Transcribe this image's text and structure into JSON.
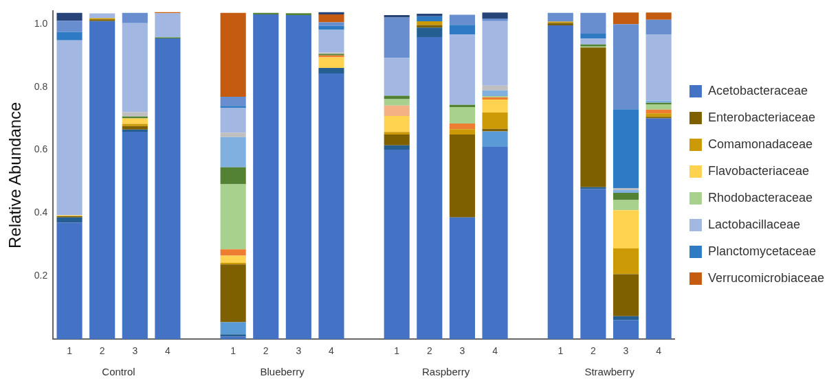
{
  "chart_data": {
    "type": "bar",
    "stacked": true,
    "ylabel": "Relative Abundance",
    "legend": "right",
    "grid": false,
    "categories": [
      "1",
      "2",
      "3",
      "4",
      null,
      "1",
      "2",
      "3",
      "4",
      null,
      "1",
      "2",
      "3",
      "4",
      null,
      "1",
      "2",
      "3",
      "4"
    ],
    "annotations": [
      "Control",
      "Blueberry",
      "Raspberry",
      "Strawberry"
    ],
    "ylim": [
      0,
      1.04
    ],
    "yticks": [
      0.2,
      0.4,
      0.6,
      0.8,
      {
        "value": 1,
        "label": "1.0"
      }
    ],
    "series": [
      {
        "name": "Acetobacteraceae",
        "color": "#4472c4",
        "values": [
          0.37,
          1.009,
          0.658,
          0.954,
          null,
          0.008,
          1.03,
          1.028,
          0.843,
          null,
          0.601,
          0.958,
          0.386,
          0.61,
          null,
          0.995,
          0.476,
          0.061,
          0.7
        ]
      },
      {
        "color": "#255e91",
        "values": [
          0.016,
          0,
          0.007,
          0,
          null,
          0.007,
          0,
          0,
          0.017,
          null,
          0.014,
          0.03,
          0,
          0,
          null,
          0,
          0.006,
          0.012,
          0
        ]
      },
      {
        "color": "#5b9bd5",
        "values": [
          0,
          0,
          0,
          0,
          null,
          0.039,
          0,
          0,
          0,
          null,
          0,
          0,
          0,
          0.049,
          null,
          0,
          0,
          0,
          0
        ]
      },
      {
        "name": "Enterobacteriaceae",
        "color": "#7f6000",
        "values": [
          0.004,
          0.005,
          0.011,
          0,
          null,
          0.183,
          0,
          0,
          0,
          null,
          0.034,
          0.008,
          0.263,
          0.008,
          null,
          0.008,
          0.443,
          0.133,
          0.005
        ]
      },
      {
        "name": "Comamonadaceae",
        "color": "#cc9a06",
        "values": [
          0,
          0.004,
          0.007,
          0,
          null,
          0.005,
          0,
          0,
          0,
          null,
          0.008,
          0.012,
          0.017,
          0.052,
          null,
          0.004,
          0,
          0.082,
          0.011
        ]
      },
      {
        "name": "Flavobacteriaceae",
        "color": "#ffd34f",
        "values": [
          0.003,
          0,
          0.017,
          0,
          null,
          0.023,
          0,
          0,
          0.034,
          null,
          0.051,
          0,
          0,
          0.041,
          null,
          0,
          0,
          0.121,
          0
        ]
      },
      {
        "color": "#ed7d31",
        "values": [
          0,
          0,
          0,
          0,
          null,
          0.02,
          0,
          0,
          0.006,
          null,
          0,
          0,
          0.018,
          0.007,
          null,
          0,
          0,
          0,
          0.012
        ]
      },
      {
        "color": "#f4b183",
        "values": [
          0,
          0,
          0,
          0,
          null,
          0,
          0,
          0,
          0,
          null,
          0.033,
          0,
          0,
          0,
          null,
          0,
          0,
          0,
          0
        ]
      },
      {
        "name": "Rhodobacteraceae",
        "color": "#a9d18e",
        "values": [
          0,
          0,
          0,
          0,
          null,
          0.206,
          0,
          0,
          0,
          null,
          0.02,
          0,
          0.052,
          0.004,
          null,
          0,
          0.003,
          0.032,
          0.017
        ]
      },
      {
        "color": "#548235",
        "values": [
          0,
          0,
          0.006,
          0.003,
          null,
          0.054,
          0.005,
          0.006,
          0.005,
          null,
          0.011,
          0,
          0.007,
          0,
          null,
          0,
          0.007,
          0.023,
          0.005
        ]
      },
      {
        "color": "#7fb0de",
        "values": [
          0,
          0,
          0,
          0,
          null,
          0.096,
          0,
          0,
          0,
          null,
          0,
          0,
          0,
          0.018,
          null,
          0,
          0,
          0.009,
          0.007
        ]
      },
      {
        "color": "#bfbfbf",
        "values": [
          0,
          0,
          0.014,
          0,
          null,
          0.014,
          0,
          0,
          0.004,
          null,
          0,
          0,
          0,
          0.015,
          null,
          0,
          0,
          0.005,
          0
        ]
      },
      {
        "name": "Lactobacillaceae",
        "color": "#a2b8e2",
        "values": [
          0.555,
          0.015,
          0.282,
          0.077,
          null,
          0.078,
          0,
          0,
          0.072,
          null,
          0.12,
          0,
          0.224,
          0.205,
          null,
          0,
          0.018,
          0,
          0.21
        ]
      },
      {
        "name": "Planctomycetaceae",
        "color": "#2e7bc4",
        "values": [
          0.026,
          0,
          0,
          0,
          null,
          0.007,
          0,
          0,
          0.013,
          null,
          0,
          0.016,
          0.03,
          0,
          null,
          0,
          0.016,
          0.251,
          0
        ]
      },
      {
        "color": "#698ed0",
        "values": [
          0.036,
          0,
          0.033,
          0,
          null,
          0.029,
          0,
          0,
          0.011,
          null,
          0.128,
          0,
          0.032,
          0.008,
          null,
          0.028,
          0.066,
          0.27,
          0.046
        ]
      },
      {
        "name": "Verrucomicrobiaceae",
        "color": "#c55a11",
        "values": [
          0,
          0,
          0,
          0.003,
          null,
          0.266,
          0,
          0,
          0.025,
          null,
          0,
          0,
          0,
          0,
          null,
          0,
          0,
          0.037,
          0.023
        ]
      },
      {
        "color": "#264478",
        "values": [
          0.025,
          0,
          0,
          0,
          null,
          0,
          0,
          0,
          0.007,
          null,
          0.008,
          0.008,
          0,
          0.019,
          null,
          0,
          0,
          0,
          0
        ]
      }
    ]
  }
}
